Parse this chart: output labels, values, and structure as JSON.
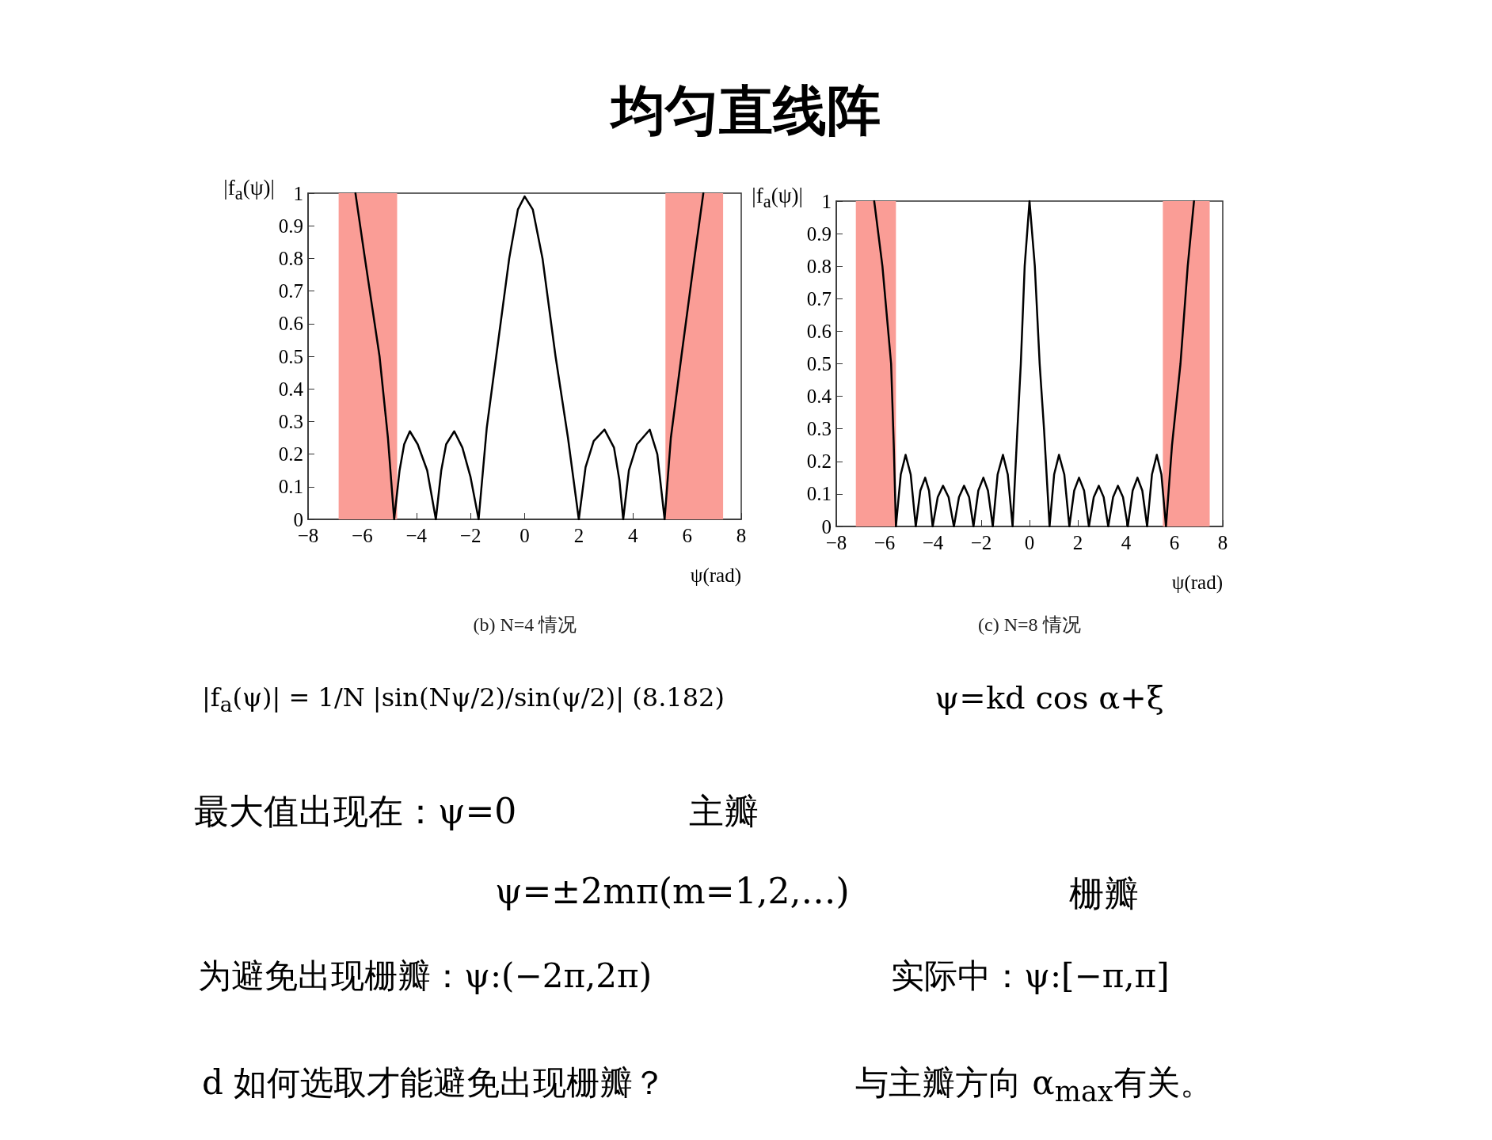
{
  "chart_data": [
    {
      "type": "line",
      "title": "均匀直线阵",
      "subtitle": "(b) N=4 情况",
      "ylabel": "|f$_{a}$(ψ)|",
      "xlabel": "ψ(rad)",
      "xlim": [
        -8,
        8
      ],
      "xticks": [
        -8,
        -6,
        -4,
        -2,
        0,
        2,
        4,
        6,
        8
      ],
      "ylim": [
        0,
        1
      ],
      "yticks": [
        0,
        0.1,
        0.2,
        0.3,
        0.4,
        0.5,
        0.6,
        0.7,
        0.8,
        0.9,
        1
      ],
      "grid": false,
      "marker": "none",
      "line_style": "solid",
      "bands": [
        {
          "axis": "x",
          "from": -6.87,
          "to": -4.71,
          "color": "#fa9d96"
        },
        {
          "axis": "x",
          "from": 5.2,
          "to": 7.33,
          "color": "#fa9d96"
        }
      ],
      "series": [
        {
          "color": "#000000",
          "x": [
            -6.25,
            -5.9,
            -5.36,
            -5.05,
            -4.82,
            -4.62,
            -4.45,
            -4.24,
            -3.95,
            -3.6,
            -3.28,
            -3.08,
            -2.9,
            -2.6,
            -2.3,
            -2.0,
            -1.7,
            -1.4,
            -1.05,
            -0.57,
            -0.25,
            0,
            0.3,
            0.66,
            1.14,
            1.6,
            2.0,
            2.25,
            2.55,
            2.95,
            3.3,
            3.5,
            3.64,
            3.85,
            4.15,
            4.62,
            4.9,
            5.17,
            5.4,
            5.79,
            6.27,
            6.6
          ],
          "values": [
            1,
            0.8,
            0.5,
            0.25,
            0,
            0.15,
            0.23,
            0.27,
            0.23,
            0.15,
            0,
            0.15,
            0.23,
            0.27,
            0.22,
            0.13,
            0,
            0.28,
            0.5,
            0.8,
            0.95,
            0.99,
            0.95,
            0.8,
            0.5,
            0.25,
            0,
            0.16,
            0.24,
            0.275,
            0.22,
            0.12,
            0,
            0.15,
            0.23,
            0.275,
            0.2,
            0,
            0.25,
            0.5,
            0.8,
            1
          ]
        }
      ],
      "annotations": [
        "|f$_{a}$(ψ)| = 1/N |sin(Nψ/2)/sin(ψ/2)|  (8.182)",
        "ψ=kd cos α+ξ",
        "最大值出现在：ψ=0",
        "主瓣",
        "ψ=±2mπ(m=1,2,…)",
        "栅瓣",
        "为避免出现栅瓣：ψ:(−2π,2π)",
        "实际中：ψ:[−π,π]",
        "d 如何选取才能避免出现栅瓣？",
        "与主瓣方向 α$_{max}$有关。"
      ]
    },
    {
      "type": "line",
      "subtitle": "(c) N=8 情况",
      "ylabel": "|f$_{a}$(ψ)|",
      "xlabel": "ψ(rad)",
      "xlim": [
        -8,
        8
      ],
      "xticks": [
        -8,
        -6,
        -4,
        -2,
        0,
        2,
        4,
        6,
        8
      ],
      "ylim": [
        0,
        1
      ],
      "yticks": [
        0,
        0.1,
        0.2,
        0.3,
        0.4,
        0.5,
        0.6,
        0.7,
        0.8,
        0.9,
        1
      ],
      "grid": false,
      "marker": "none",
      "line_style": "solid",
      "bands": [
        {
          "axis": "x",
          "from": -7.19,
          "to": -5.53,
          "color": "#fa9d96"
        },
        {
          "axis": "x",
          "from": 5.52,
          "to": 7.46,
          "color": "#fa9d96"
        }
      ],
      "series": [
        {
          "color": "#000000",
          "x": [
            -6.43,
            -6.09,
            -5.73,
            -5.62,
            -5.53,
            -5.33,
            -5.13,
            -4.92,
            -4.71,
            -4.52,
            -4.32,
            -4.16,
            -4.01,
            -3.8,
            -3.58,
            -3.35,
            -3.13,
            -2.92,
            -2.71,
            -2.5,
            -2.32,
            -2.12,
            -1.91,
            -1.72,
            -1.52,
            -1.32,
            -1.1,
            -0.9,
            -0.7,
            -0.5,
            -0.36,
            -0.2,
            0,
            0.22,
            0.42,
            0.6,
            0.83,
            1.02,
            1.22,
            1.44,
            1.65,
            1.85,
            2.05,
            2.26,
            2.46,
            2.66,
            2.87,
            3.07,
            3.26,
            3.46,
            3.66,
            3.87,
            4.07,
            4.27,
            4.47,
            4.67,
            4.87,
            5.07,
            5.27,
            5.46,
            5.65,
            5.9,
            6.25,
            6.55,
            6.81
          ],
          "values": [
            1,
            0.8,
            0.5,
            0.25,
            0,
            0.16,
            0.22,
            0.16,
            0,
            0.11,
            0.15,
            0.11,
            0,
            0.09,
            0.125,
            0.09,
            0,
            0.09,
            0.125,
            0.09,
            0,
            0.11,
            0.15,
            0.11,
            0,
            0.16,
            0.22,
            0.16,
            0,
            0.3,
            0.5,
            0.8,
            1,
            0.8,
            0.5,
            0.3,
            0,
            0.16,
            0.22,
            0.16,
            0,
            0.11,
            0.15,
            0.11,
            0,
            0.09,
            0.125,
            0.09,
            0,
            0.09,
            0.125,
            0.09,
            0,
            0.11,
            0.15,
            0.11,
            0,
            0.16,
            0.22,
            0.16,
            0,
            0.25,
            0.5,
            0.8,
            1
          ]
        }
      ]
    }
  ]
}
